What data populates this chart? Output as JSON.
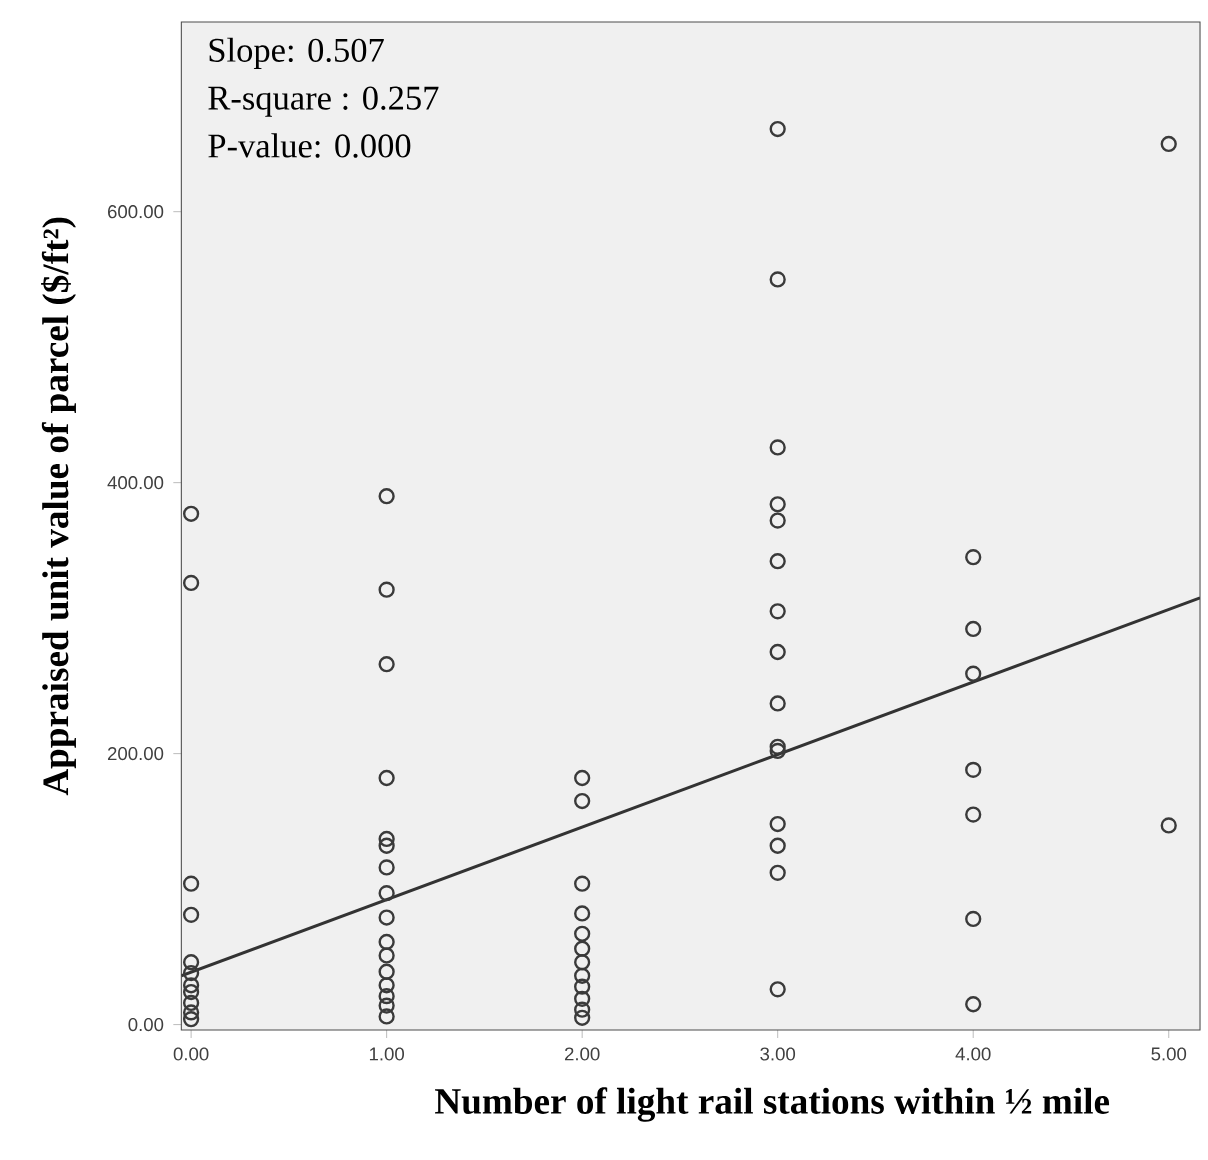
{
  "chart_data": {
    "type": "scatter",
    "xlabel": "Number of light rail stations within ½ mile",
    "ylabel": "Appraised unit value of parcel ($/ft²)",
    "annotations": [
      "Slope: 0.507",
      "R-square : 0.257",
      "P-value: 0.000"
    ],
    "xlim": [
      -0.05,
      5.16
    ],
    "ylim": [
      -4,
      740
    ],
    "xticks": [
      {
        "value": 0,
        "label": "0.00"
      },
      {
        "value": 1,
        "label": "1.00"
      },
      {
        "value": 2,
        "label": "2.00"
      },
      {
        "value": 3,
        "label": "3.00"
      },
      {
        "value": 4,
        "label": "4.00"
      },
      {
        "value": 5,
        "label": "5.00"
      }
    ],
    "yticks": [
      {
        "value": 0,
        "label": "0.00"
      },
      {
        "value": 200,
        "label": "200.00"
      },
      {
        "value": 400,
        "label": "400.00"
      },
      {
        "value": 600,
        "label": "600.00"
      }
    ],
    "grid": false,
    "series": [
      {
        "marker": "circle",
        "color": "#3a3a3a",
        "x": [
          0,
          0,
          0,
          0,
          0,
          0,
          0,
          0,
          0,
          0,
          0,
          1,
          1,
          1,
          1,
          1,
          1,
          1,
          1,
          1,
          1,
          1,
          1,
          1,
          1,
          1,
          1,
          2,
          2,
          2,
          2,
          2,
          2,
          2,
          2,
          2,
          2,
          2,
          2,
          3,
          3,
          3,
          3,
          3,
          3,
          3,
          3,
          3,
          3,
          3,
          3,
          3,
          3,
          3,
          4,
          4,
          4,
          4,
          4,
          4,
          4,
          5,
          5
        ],
        "values": [
          377,
          326,
          104,
          81,
          46,
          38,
          29,
          24,
          16,
          9,
          4,
          390,
          321,
          266,
          182,
          137,
          132,
          116,
          97,
          79,
          61,
          51,
          39,
          29,
          21,
          14,
          6,
          182,
          165,
          104,
          82,
          67,
          56,
          46,
          36,
          28,
          19,
          11,
          5,
          661,
          550,
          426,
          384,
          372,
          342,
          305,
          275,
          237,
          205,
          202,
          148,
          132,
          112,
          26,
          345,
          292,
          259,
          188,
          155,
          78,
          15,
          650,
          147
        ]
      },
      {
        "type": "line",
        "marker": "none",
        "color": "#333333",
        "x": [
          -0.05,
          5.16
        ],
        "values": [
          36,
          315
        ]
      }
    ]
  }
}
